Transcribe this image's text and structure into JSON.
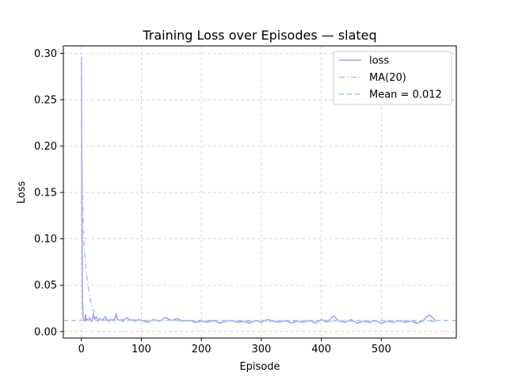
{
  "chart_data": {
    "type": "line",
    "title": "Training Loss over Episodes — slateq",
    "xlabel": "Episode",
    "ylabel": "Loss",
    "xlim": [
      -30,
      625
    ],
    "ylim": [
      -0.007,
      0.308
    ],
    "xticks": [
      0,
      100,
      200,
      300,
      400,
      500
    ],
    "yticks": [
      0.0,
      0.05,
      0.1,
      0.15,
      0.2,
      0.25,
      0.3
    ],
    "ytick_labels": [
      "0.00",
      "0.05",
      "0.10",
      "0.15",
      "0.20",
      "0.25",
      "0.30"
    ],
    "grid": true,
    "legend_position": "top-right",
    "series": [
      {
        "name": "loss",
        "style": "solid",
        "color": "#a79cf2",
        "x": [
          0,
          1,
          2,
          3,
          4,
          5,
          6,
          7,
          8,
          9,
          10,
          12,
          14,
          16,
          18,
          20,
          22,
          25,
          28,
          30,
          35,
          40,
          45,
          50,
          55,
          58,
          60,
          65,
          70,
          75,
          80,
          85,
          90,
          95,
          100,
          110,
          120,
          130,
          140,
          150,
          160,
          170,
          180,
          190,
          200,
          210,
          220,
          230,
          240,
          250,
          260,
          270,
          280,
          290,
          300,
          310,
          320,
          330,
          340,
          350,
          360,
          370,
          380,
          390,
          400,
          410,
          420,
          430,
          440,
          450,
          460,
          470,
          480,
          490,
          500,
          510,
          520,
          530,
          540,
          550,
          560,
          570,
          580,
          590
        ],
        "y": [
          0.296,
          0.12,
          0.03,
          0.016,
          0.013,
          0.012,
          0.011,
          0.018,
          0.012,
          0.014,
          0.013,
          0.012,
          0.015,
          0.012,
          0.011,
          0.019,
          0.013,
          0.016,
          0.011,
          0.014,
          0.012,
          0.016,
          0.011,
          0.013,
          0.012,
          0.019,
          0.013,
          0.012,
          0.011,
          0.015,
          0.013,
          0.012,
          0.011,
          0.013,
          0.012,
          0.01,
          0.013,
          0.011,
          0.015,
          0.012,
          0.014,
          0.011,
          0.012,
          0.01,
          0.011,
          0.01,
          0.012,
          0.009,
          0.011,
          0.012,
          0.01,
          0.011,
          0.009,
          0.012,
          0.01,
          0.013,
          0.011,
          0.01,
          0.012,
          0.009,
          0.011,
          0.01,
          0.012,
          0.009,
          0.013,
          0.01,
          0.017,
          0.011,
          0.01,
          0.013,
          0.009,
          0.011,
          0.01,
          0.012,
          0.009,
          0.011,
          0.01,
          0.012,
          0.01,
          0.011,
          0.009,
          0.012,
          0.018,
          0.012
        ]
      },
      {
        "name": "MA(20)",
        "style": "dashdot",
        "color": "#a6c8f0",
        "x": [
          0,
          1,
          2,
          3,
          4,
          5,
          6,
          8,
          10,
          12,
          14,
          16,
          18,
          20,
          22,
          25,
          30,
          40,
          50,
          60,
          80,
          100,
          150,
          200,
          250,
          300,
          350,
          400,
          450,
          500,
          550,
          590
        ],
        "y": [
          0.296,
          0.2,
          0.15,
          0.12,
          0.1,
          0.09,
          0.08,
          0.066,
          0.055,
          0.046,
          0.038,
          0.032,
          0.027,
          0.022,
          0.016,
          0.014,
          0.013,
          0.013,
          0.013,
          0.013,
          0.013,
          0.012,
          0.012,
          0.011,
          0.011,
          0.011,
          0.011,
          0.011,
          0.011,
          0.011,
          0.011,
          0.011
        ]
      },
      {
        "name": "Mean = 0.012",
        "style": "dashed",
        "color": "#a6c8f0",
        "x": [
          -30,
          625
        ],
        "y": [
          0.012,
          0.012
        ]
      }
    ]
  }
}
